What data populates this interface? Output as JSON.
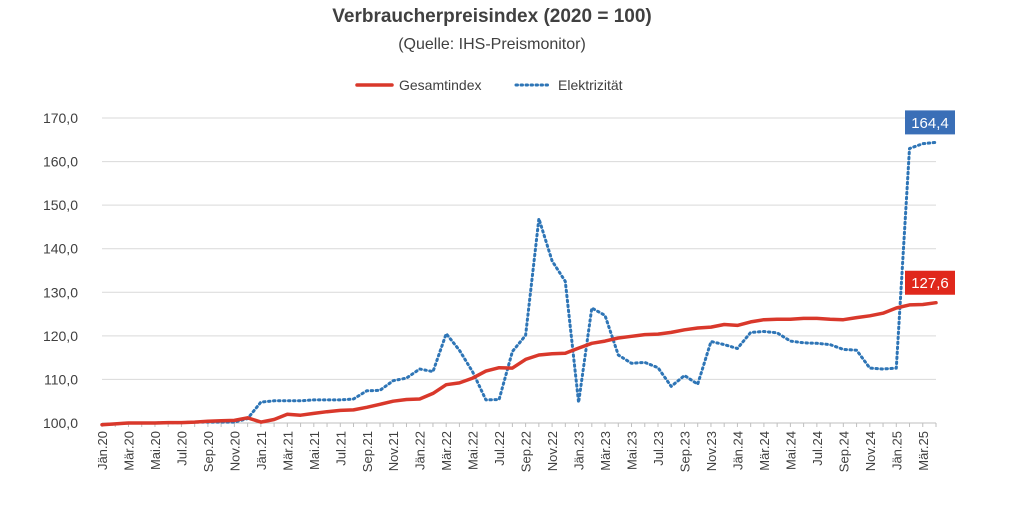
{
  "chart_data": {
    "type": "line",
    "title": "Verbraucherpreisindex (2020 = 100)",
    "subtitle": "(Quelle: IHS-Preismonitor)",
    "xlabel": "",
    "ylabel": "",
    "ylim": [
      100,
      170
    ],
    "yticks": [
      "100,0",
      "110,0",
      "120,0",
      "130,0",
      "140,0",
      "150,0",
      "160,0",
      "170,0"
    ],
    "ytick_values": [
      100,
      110,
      120,
      130,
      140,
      150,
      160,
      170
    ],
    "grid": "horizontal",
    "legend_position": "top",
    "categories": [
      "Jän.20",
      "Feb.20",
      "Mär.20",
      "Apr.20",
      "Mai.20",
      "Jun.20",
      "Jul.20",
      "Aug.20",
      "Sep.20",
      "Okt.20",
      "Nov.20",
      "Dez.20",
      "Jän.21",
      "Feb.21",
      "Mär.21",
      "Apr.21",
      "Mai.21",
      "Jun.21",
      "Jul.21",
      "Aug.21",
      "Sep.21",
      "Okt.21",
      "Nov.21",
      "Dez.21",
      "Jän.22",
      "Feb.22",
      "Mär.22",
      "Apr.22",
      "Mai.22",
      "Jun.22",
      "Jul.22",
      "Aug.22",
      "Sep.22",
      "Okt.22",
      "Nov.22",
      "Dez.22",
      "Jän.23",
      "Feb.23",
      "Mär.23",
      "Apr.23",
      "Mai.23",
      "Jun.23",
      "Jul.23",
      "Aug.23",
      "Sep.23",
      "Okt.23",
      "Nov.23",
      "Dez.23",
      "Jän.24",
      "Feb.24",
      "Mär.24",
      "Apr.24",
      "Mai.24",
      "Jun.24",
      "Jul.24",
      "Aug.24",
      "Sep.24",
      "Okt.24",
      "Nov.24",
      "Dez.24",
      "Jän.25",
      "Feb.25",
      "Mär.25",
      "Apr.25"
    ],
    "shown_tick_labels": [
      "Jän.20",
      "Mär.20",
      "Mai.20",
      "Jul.20",
      "Sep.20",
      "Nov.20",
      "Jän.21",
      "Mär.21",
      "Mai.21",
      "Jul.21",
      "Sep.21",
      "Nov.21",
      "Jän.22",
      "Mär.22",
      "Mai.22",
      "Jul.22",
      "Sep.22",
      "Nov.22",
      "Jän.23",
      "Mär.23",
      "Mai.23",
      "Jul.23",
      "Sep.23",
      "Nov.23",
      "Jän.24",
      "Mär.24",
      "Mai.24",
      "Jul.24",
      "Sep.24",
      "Nov.24",
      "Jän.25",
      "Mär.25"
    ],
    "series": [
      {
        "name": "Gesamtindex",
        "color": "#d9382b",
        "style": "solid",
        "values": [
          99.6,
          99.8,
          100.0,
          100.0,
          100.0,
          100.1,
          100.1,
          100.2,
          100.4,
          100.5,
          100.6,
          101.2,
          100.2,
          100.8,
          102.0,
          101.8,
          102.2,
          102.6,
          102.9,
          103.0,
          103.6,
          104.3,
          105.0,
          105.4,
          105.5,
          106.8,
          108.8,
          109.2,
          110.3,
          111.9,
          112.7,
          112.6,
          114.6,
          115.6,
          115.9,
          116.0,
          117.2,
          118.3,
          118.8,
          119.5,
          119.9,
          120.3,
          120.4,
          120.8,
          121.4,
          121.8,
          122.0,
          122.6,
          122.4,
          123.2,
          123.7,
          123.8,
          123.8,
          124.0,
          124.0,
          123.8,
          123.7,
          124.2,
          124.6,
          125.2,
          126.4,
          127.1,
          127.2,
          127.6
        ],
        "data_label": "127,6",
        "label_color": "#e0281c"
      },
      {
        "name": "Elektrizität",
        "color": "#2e75b6",
        "style": "dotted",
        "values": [
          99.6,
          99.8,
          100.0,
          100.0,
          100.0,
          100.1,
          100.1,
          100.2,
          100.2,
          100.2,
          100.2,
          101.0,
          104.8,
          105.1,
          105.1,
          105.1,
          105.3,
          105.3,
          105.3,
          105.5,
          107.4,
          107.5,
          109.7,
          110.3,
          112.4,
          111.8,
          120.5,
          116.7,
          111.7,
          105.3,
          105.4,
          116.4,
          120.1,
          146.9,
          137.2,
          132.5,
          104.7,
          126.4,
          124.7,
          115.6,
          113.7,
          113.9,
          112.7,
          108.4,
          110.9,
          108.9,
          118.7,
          118.0,
          117.1,
          120.8,
          121.0,
          120.7,
          118.8,
          118.4,
          118.3,
          118.0,
          116.9,
          116.7,
          112.6,
          112.4,
          112.6,
          163.0,
          164.1,
          164.4
        ],
        "data_label": "164,4",
        "label_color": "#3a6fb7"
      }
    ]
  }
}
